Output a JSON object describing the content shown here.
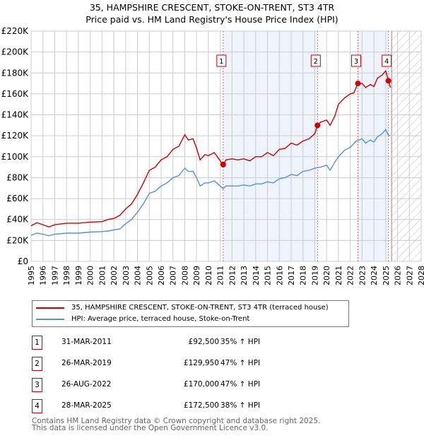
{
  "title": "35, HAMPSHIRE CRESCENT, STOKE-ON-TRENT, ST3 4TR",
  "subtitle": "Price paid vs. HM Land Registry's House Price Index (HPI)",
  "chart_data": {
    "type": "line",
    "title": "35, HAMPSHIRE CRESCENT, STOKE-ON-TRENT, ST3 4TR — Price paid vs. HM Land Registry's House Price Index (HPI)",
    "xlim": [
      1995,
      2028
    ],
    "ylim": [
      0,
      220000
    ],
    "x_ticks": [
      "1995",
      "1996",
      "1997",
      "1998",
      "1999",
      "2000",
      "2001",
      "2002",
      "2003",
      "2004",
      "2005",
      "2006",
      "2007",
      "2008",
      "2009",
      "2010",
      "2011",
      "2012",
      "2013",
      "2014",
      "2015",
      "2016",
      "2017",
      "2018",
      "2019",
      "2020",
      "2021",
      "2022",
      "2023",
      "2024",
      "2025",
      "2026",
      "2027",
      "2028"
    ],
    "y_ticks": [
      {
        "v": 0,
        "label": "£0"
      },
      {
        "v": 20000,
        "label": "£20K"
      },
      {
        "v": 40000,
        "label": "£40K"
      },
      {
        "v": 60000,
        "label": "£60K"
      },
      {
        "v": 80000,
        "label": "£80K"
      },
      {
        "v": 100000,
        "label": "£100K"
      },
      {
        "v": 120000,
        "label": "£120K"
      },
      {
        "v": 140000,
        "label": "£140K"
      },
      {
        "v": 160000,
        "label": "£160K"
      },
      {
        "v": 180000,
        "label": "£180K"
      },
      {
        "v": 200000,
        "label": "£200K"
      },
      {
        "v": 220000,
        "label": "£220K"
      }
    ],
    "grid": true,
    "shaded_ranges": [
      [
        2011.25,
        2019.23
      ],
      [
        2022.65,
        2025.23
      ]
    ],
    "future_hatch_from": 2025.5,
    "series": [
      {
        "name": "35, HAMPSHIRE CRESCENT, STOKE-ON-TRENT, ST3 4TR (terraced house)",
        "color": "#cc0000",
        "x": [
          1995,
          1995.5,
          1996,
          1996.5,
          1997,
          1998,
          1999,
          2000,
          2001,
          2001.5,
          2002,
          2002.5,
          2003,
          2003.5,
          2004,
          2004.5,
          2005,
          2005.5,
          2006,
          2006.5,
          2007,
          2007.5,
          2008,
          2008.3,
          2008.7,
          2009,
          2009.3,
          2009.7,
          2010,
          2010.5,
          2011,
          2011.25,
          2011.5,
          2012,
          2012.5,
          2013,
          2013.5,
          2014,
          2014.5,
          2015,
          2015.5,
          2016,
          2016.5,
          2017,
          2017.5,
          2018,
          2018.5,
          2019,
          2019.23,
          2019.5,
          2020,
          2020.3,
          2020.7,
          2021,
          2021.5,
          2022,
          2022.3,
          2022.65,
          2023,
          2023.3,
          2023.7,
          2024,
          2024.3,
          2024.7,
          2025,
          2025.23,
          2025.4
        ],
        "y": [
          34000,
          37000,
          35000,
          33000,
          35000,
          36500,
          36500,
          37500,
          38000,
          40000,
          41000,
          44000,
          50000,
          55000,
          64000,
          75000,
          87000,
          90000,
          97000,
          100000,
          107000,
          110000,
          121000,
          116000,
          117000,
          108000,
          97000,
          102000,
          101000,
          104000,
          96000,
          92500,
          97000,
          98000,
          97000,
          98000,
          96000,
          100000,
          100000,
          104000,
          101000,
          107000,
          108000,
          113000,
          111000,
          115000,
          117000,
          122000,
          129950,
          133000,
          135000,
          130000,
          139000,
          150000,
          156000,
          160000,
          161000,
          170000,
          170000,
          166000,
          169000,
          167000,
          175000,
          178000,
          182000,
          172500,
          166000
        ]
      },
      {
        "name": "HPI: Average price, terraced house, Stoke-on-Trent",
        "color": "#5b8fd0",
        "x": [
          1995,
          1995.5,
          1996,
          1996.5,
          1997,
          1998,
          1999,
          2000,
          2001,
          2001.5,
          2002,
          2002.5,
          2003,
          2003.5,
          2004,
          2004.5,
          2005,
          2005.5,
          2006,
          2006.5,
          2007,
          2007.5,
          2008,
          2008.3,
          2008.7,
          2009,
          2009.3,
          2009.7,
          2010,
          2010.5,
          2011,
          2011.25,
          2011.5,
          2012,
          2012.5,
          2013,
          2013.5,
          2014,
          2014.5,
          2015,
          2015.5,
          2016,
          2016.5,
          2017,
          2017.5,
          2018,
          2018.5,
          2019,
          2019.5,
          2020,
          2020.3,
          2020.7,
          2021,
          2021.5,
          2022,
          2022.5,
          2023,
          2023.3,
          2023.7,
          2024,
          2024.3,
          2024.7,
          2025,
          2025.2,
          2025.4
        ],
        "y": [
          25000,
          27000,
          26000,
          24500,
          26000,
          27000,
          27000,
          28000,
          28500,
          29000,
          30000,
          31000,
          36000,
          40000,
          47000,
          55000,
          65000,
          67000,
          72000,
          75000,
          80000,
          82000,
          89000,
          86000,
          86000,
          80000,
          72000,
          75000,
          75000,
          77000,
          72000,
          69500,
          72000,
          72000,
          72000,
          73000,
          72000,
          74000,
          74000,
          76000,
          75000,
          79000,
          80000,
          83000,
          82000,
          86000,
          87000,
          89000,
          90000,
          92000,
          87000,
          95000,
          100000,
          106000,
          109000,
          115000,
          117000,
          113000,
          116000,
          114000,
          119000,
          122000,
          126000,
          121000,
          120000
        ]
      }
    ],
    "sales": [
      {
        "n": "1",
        "date": "31-MAR-2011",
        "x": 2011.25,
        "price": 92500,
        "price_label": "£92,500",
        "hpi": "35% ↑ HPI"
      },
      {
        "n": "2",
        "date": "26-MAR-2019",
        "x": 2019.23,
        "price": 129950,
        "price_label": "£129,950",
        "hpi": "47% ↑ HPI"
      },
      {
        "n": "3",
        "date": "26-AUG-2022",
        "x": 2022.65,
        "price": 170000,
        "price_label": "£170,000",
        "hpi": "47% ↑ HPI"
      },
      {
        "n": "4",
        "date": "28-MAR-2025",
        "x": 2025.23,
        "price": 172500,
        "price_label": "£172,500",
        "hpi": "38% ↑ HPI"
      }
    ]
  },
  "legend": {
    "red": "35, HAMPSHIRE CRESCENT, STOKE-ON-TRENT, ST3 4TR (terraced house)",
    "blue": "HPI: Average price, terraced house, Stoke-on-Trent"
  },
  "footer": {
    "line1": "Contains HM Land Registry data © Crown copyright and database right 2025.",
    "line2": "This data is licensed under the Open Government Licence v3.0."
  }
}
